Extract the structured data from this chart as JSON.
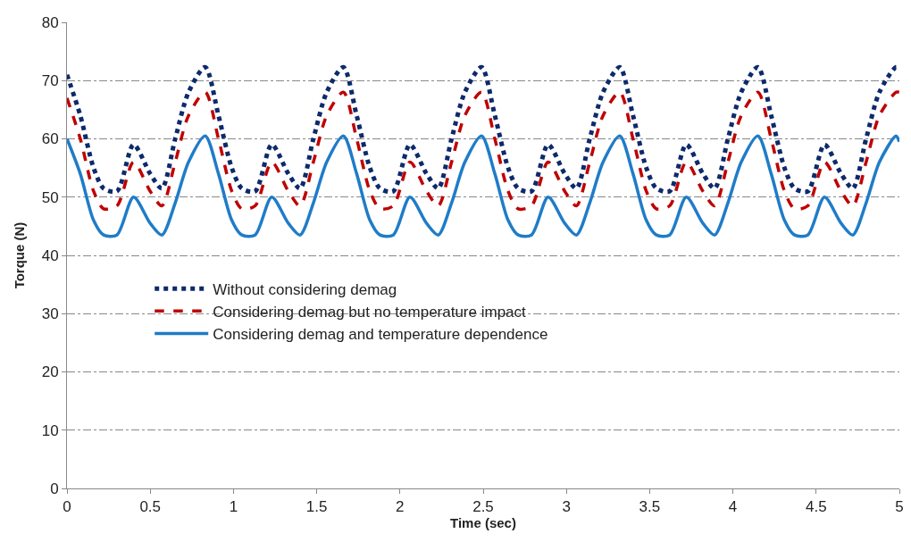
{
  "chart_data": {
    "type": "line",
    "xlabel": "Time (sec)",
    "ylabel": "Torque (N)",
    "x": [
      0,
      0.08,
      0.16,
      0.22,
      0.3,
      0.4,
      0.5,
      0.57,
      0.65,
      0.73,
      0.83,
      0.91,
      0.99,
      1.05,
      1.13,
      1.23,
      1.33,
      1.4,
      1.48,
      1.56,
      1.66,
      1.74,
      1.82,
      1.88,
      1.96,
      2.06,
      2.16,
      2.23,
      2.31,
      2.39,
      2.49,
      2.57,
      2.65,
      2.71,
      2.79,
      2.89,
      2.99,
      3.06,
      3.14,
      3.22,
      3.32,
      3.4,
      3.48,
      3.54,
      3.62,
      3.72,
      3.82,
      3.89,
      3.97,
      4.05,
      4.15,
      4.23,
      4.31,
      4.37,
      4.45,
      4.55,
      4.65,
      4.72,
      4.8,
      4.88,
      4.98,
      5.0
    ],
    "series": [
      {
        "name": "Without considering demag",
        "color": "#0d2a6b",
        "line_style": "dotted",
        "values": [
          71,
          64,
          55,
          51.5,
          51,
          59,
          54,
          51.5,
          60,
          68,
          72.3,
          64,
          55,
          51.5,
          51,
          59,
          54,
          51.5,
          60,
          68,
          72.3,
          64,
          55,
          51.5,
          51,
          59,
          54,
          51.5,
          60,
          68,
          72.3,
          64,
          55,
          51.5,
          51,
          59,
          54,
          51.5,
          60,
          68,
          72.3,
          64,
          55,
          51.5,
          51,
          59,
          54,
          51.5,
          60,
          68,
          72.3,
          64,
          55,
          51.5,
          51,
          59,
          54,
          51.5,
          60,
          68,
          72.3,
          72
        ]
      },
      {
        "name": "Considering demag but no temperature impact",
        "color": "#c00000",
        "line_style": "dashed",
        "values": [
          67,
          60,
          51,
          48,
          48.5,
          56,
          51,
          48.5,
          56,
          64,
          68,
          60,
          51,
          48,
          48.5,
          56,
          51,
          48.5,
          56,
          64,
          68,
          60,
          51,
          48,
          48.5,
          56,
          51,
          48.5,
          56,
          64,
          68,
          60,
          51,
          48,
          48.5,
          56,
          51,
          48.5,
          56,
          64,
          68,
          60,
          51,
          48,
          48.5,
          56,
          51,
          48.5,
          56,
          64,
          68,
          60,
          51,
          48,
          48.5,
          56,
          51,
          48.5,
          56,
          64,
          68,
          68
        ]
      },
      {
        "name": "Considering demag and temperature dependence",
        "color": "#1f7cc8",
        "line_style": "solid",
        "values": [
          60,
          54,
          46,
          43.5,
          43.5,
          50,
          45.5,
          43.5,
          49,
          56,
          60.5,
          54,
          46,
          43.5,
          43.5,
          50,
          45.5,
          43.5,
          49,
          56,
          60.5,
          54,
          46,
          43.5,
          43.5,
          50,
          45.5,
          43.5,
          49,
          56,
          60.5,
          54,
          46,
          43.5,
          43.5,
          50,
          45.5,
          43.5,
          49,
          56,
          60.5,
          54,
          46,
          43.5,
          43.5,
          50,
          45.5,
          43.5,
          49,
          56,
          60.5,
          54,
          46,
          43.5,
          43.5,
          50,
          45.5,
          43.5,
          49,
          56,
          60.5,
          59.5
        ]
      }
    ],
    "xlim": [
      0,
      5
    ],
    "xticks": [
      0,
      0.5,
      1,
      1.5,
      2,
      2.5,
      3,
      3.5,
      4,
      4.5,
      5
    ],
    "ylim": [
      0,
      80
    ],
    "yticks": [
      0,
      10,
      20,
      30,
      40,
      50,
      60,
      70,
      80
    ],
    "grid": "y",
    "legend": "left",
    "marker": "none"
  }
}
